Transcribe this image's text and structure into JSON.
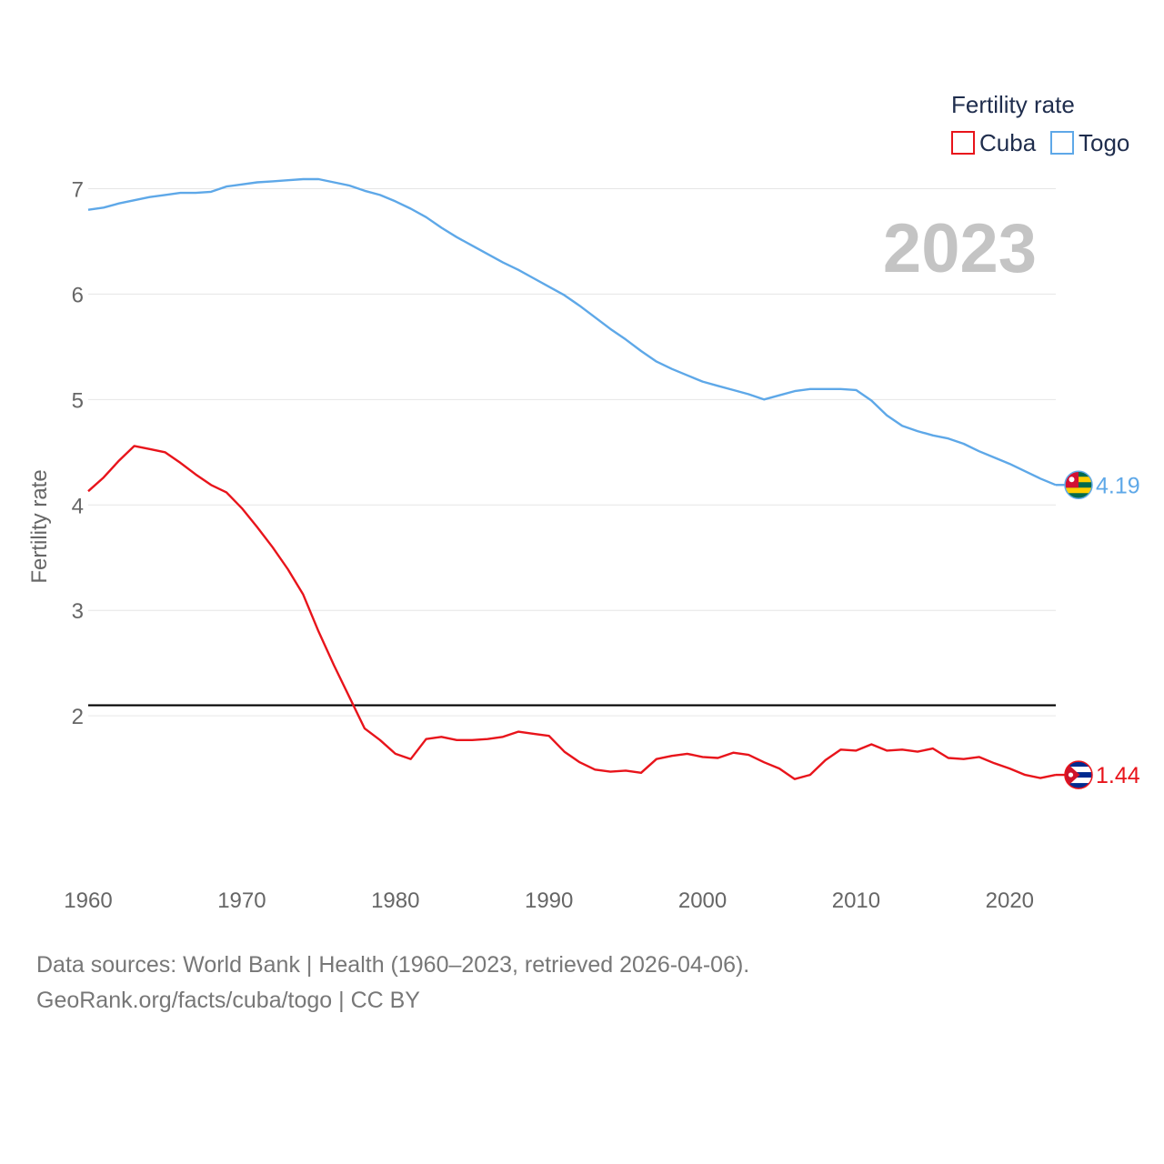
{
  "chart_data": {
    "type": "line",
    "highlight_year": "2023",
    "ylabel": "Fertility rate",
    "xlabel": "",
    "xlim": [
      1960,
      2023
    ],
    "ylim": [
      1.0,
      7.55
    ],
    "x_ticks": [
      1960,
      1970,
      1980,
      1990,
      2000,
      2010,
      2020
    ],
    "y_ticks": [
      2,
      3,
      4,
      5,
      6,
      7
    ],
    "legend": {
      "title": "Fertility rate",
      "position": "top-right"
    },
    "reference_line": {
      "value": 2.1
    },
    "x": [
      1960,
      1961,
      1962,
      1963,
      1964,
      1965,
      1966,
      1967,
      1968,
      1969,
      1970,
      1971,
      1972,
      1973,
      1974,
      1975,
      1976,
      1977,
      1978,
      1979,
      1980,
      1981,
      1982,
      1983,
      1984,
      1985,
      1986,
      1987,
      1988,
      1989,
      1990,
      1991,
      1992,
      1993,
      1994,
      1995,
      1996,
      1997,
      1998,
      1999,
      2000,
      2001,
      2002,
      2003,
      2004,
      2005,
      2006,
      2007,
      2008,
      2009,
      2010,
      2011,
      2012,
      2013,
      2014,
      2015,
      2016,
      2017,
      2018,
      2019,
      2020,
      2021,
      2022,
      2023
    ],
    "series": [
      {
        "name": "Cuba",
        "color": "#e8141b",
        "flag": "cuba-flag-icon",
        "end_label": "1.44",
        "values": [
          4.13,
          4.26,
          4.42,
          4.56,
          4.53,
          4.5,
          4.4,
          4.29,
          4.19,
          4.12,
          3.97,
          3.79,
          3.6,
          3.39,
          3.15,
          2.8,
          2.48,
          2.18,
          1.88,
          1.77,
          1.64,
          1.59,
          1.78,
          1.8,
          1.77,
          1.77,
          1.78,
          1.8,
          1.85,
          1.83,
          1.81,
          1.66,
          1.56,
          1.49,
          1.47,
          1.48,
          1.46,
          1.59,
          1.62,
          1.64,
          1.61,
          1.6,
          1.65,
          1.63,
          1.56,
          1.5,
          1.4,
          1.44,
          1.58,
          1.68,
          1.67,
          1.73,
          1.67,
          1.68,
          1.66,
          1.69,
          1.6,
          1.59,
          1.61,
          1.55,
          1.5,
          1.44,
          1.41,
          1.44
        ]
      },
      {
        "name": "Togo",
        "color": "#5ea8e8",
        "flag": "togo-flag-icon",
        "end_label": "4.19",
        "values": [
          6.8,
          6.82,
          6.86,
          6.89,
          6.92,
          6.94,
          6.96,
          6.96,
          6.97,
          7.02,
          7.04,
          7.06,
          7.07,
          7.08,
          7.09,
          7.09,
          7.06,
          7.03,
          6.98,
          6.94,
          6.88,
          6.81,
          6.73,
          6.63,
          6.54,
          6.46,
          6.38,
          6.3,
          6.23,
          6.15,
          6.07,
          5.99,
          5.89,
          5.78,
          5.67,
          5.57,
          5.46,
          5.36,
          5.29,
          5.23,
          5.17,
          5.13,
          5.09,
          5.05,
          5.0,
          5.04,
          5.08,
          5.1,
          5.1,
          5.1,
          5.09,
          4.99,
          4.85,
          4.75,
          4.7,
          4.66,
          4.63,
          4.58,
          4.51,
          4.45,
          4.39,
          4.32,
          4.25,
          4.19
        ]
      }
    ]
  },
  "footer": {
    "line1": "Data sources: World Bank | Health (1960–2023, retrieved 2026-04-06).",
    "line2": "GeoRank.org/facts/cuba/togo | CC BY"
  }
}
